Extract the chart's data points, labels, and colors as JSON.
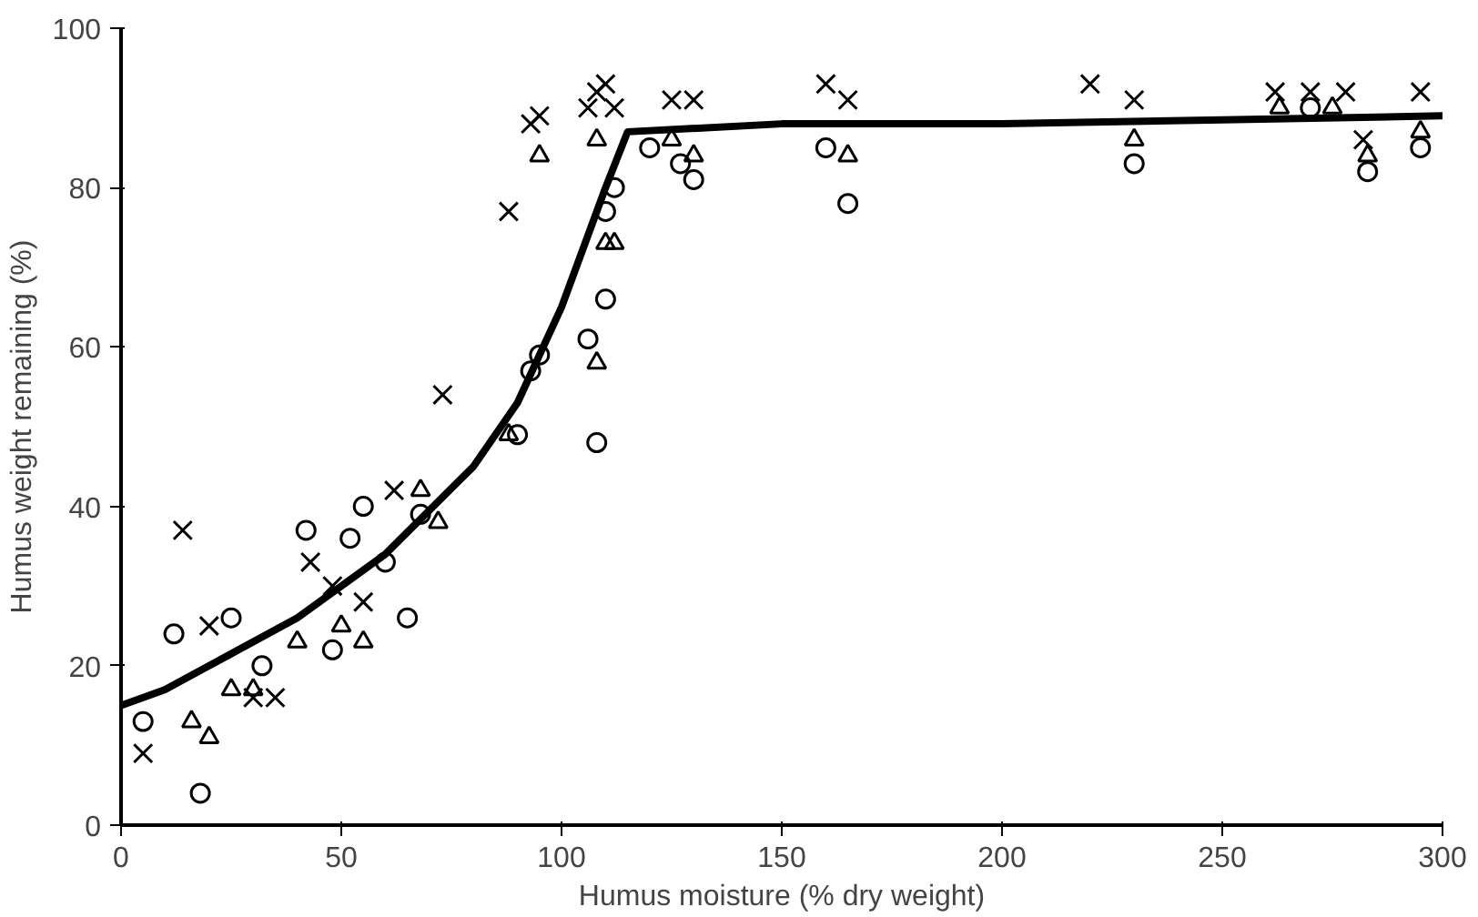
{
  "chart_data": {
    "type": "scatter",
    "xlabel": "Humus moisture (% dry weight)",
    "ylabel": "Humus weight remaining (%)",
    "xlim": [
      0,
      300
    ],
    "ylim": [
      0,
      100
    ],
    "xticks": [
      0,
      50,
      100,
      150,
      200,
      250,
      300
    ],
    "yticks": [
      0,
      20,
      40,
      60,
      80,
      100
    ],
    "grid": false,
    "series": [
      {
        "marker": "cross",
        "color": "#000000",
        "x": [
          5,
          14,
          20,
          30,
          35,
          43,
          48,
          55,
          62,
          73,
          88,
          93,
          95,
          106,
          108,
          110,
          112,
          125,
          130,
          160,
          165,
          220,
          230,
          262,
          270,
          278,
          282,
          295
        ],
        "values": [
          9,
          37,
          25,
          16,
          16,
          33,
          30,
          28,
          42,
          54,
          77,
          88,
          89,
          90,
          92,
          93,
          90,
          91,
          91,
          93,
          91,
          93,
          91,
          92,
          92,
          92,
          86,
          92
        ]
      },
      {
        "marker": "triangle",
        "color": "#000000",
        "x": [
          16,
          20,
          25,
          30,
          40,
          50,
          55,
          68,
          72,
          88,
          95,
          108,
          110,
          112,
          108,
          125,
          130,
          165,
          230,
          263,
          275,
          283,
          295
        ],
        "values": [
          13,
          11,
          17,
          17,
          23,
          25,
          23,
          42,
          38,
          49,
          84,
          58,
          73,
          73,
          86,
          86,
          84,
          84,
          86,
          90,
          90,
          84,
          87
        ]
      },
      {
        "marker": "circle",
        "color": "#000000",
        "x": [
          5,
          12,
          18,
          25,
          32,
          42,
          48,
          52,
          55,
          60,
          65,
          68,
          90,
          93,
          95,
          106,
          108,
          110,
          110,
          112,
          120,
          127,
          130,
          160,
          165,
          230,
          270,
          283,
          295
        ],
        "values": [
          13,
          24,
          4,
          26,
          20,
          37,
          22,
          36,
          40,
          33,
          26,
          39,
          49,
          57,
          59,
          61,
          48,
          66,
          77,
          80,
          85,
          83,
          81,
          85,
          78,
          83,
          90,
          82,
          85
        ]
      },
      {
        "type": "line",
        "marker": "none",
        "color": "#000000",
        "x": [
          0,
          10,
          20,
          40,
          60,
          80,
          90,
          100,
          110,
          115,
          150,
          200,
          250,
          300
        ],
        "values": [
          15,
          17,
          20,
          26,
          34,
          45,
          53,
          65,
          80,
          87,
          88,
          88,
          88.5,
          89
        ]
      }
    ]
  }
}
